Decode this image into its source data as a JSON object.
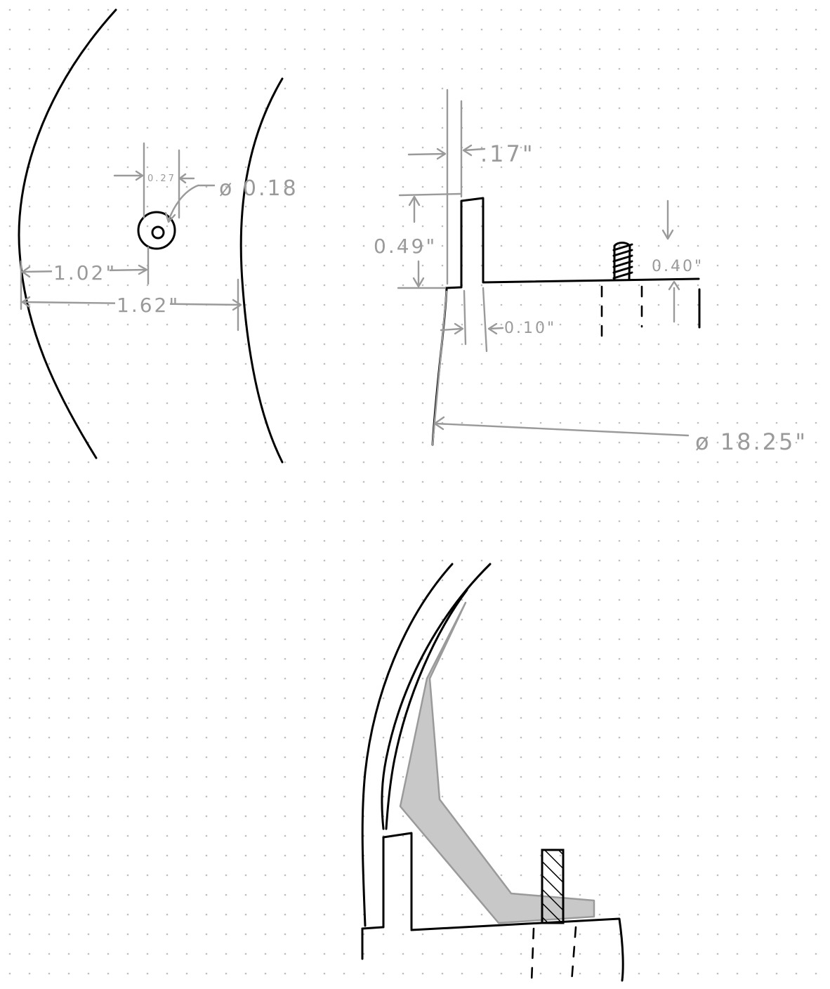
{
  "sketch_1_hole_plan": {
    "hole_offset_width": "0.27",
    "hole_diameter": "ø 0.18",
    "hole_distance": "1.02\"",
    "flange_width": "1.62\""
  },
  "sketch_2_section": {
    "thickness_top": ".17\"",
    "lip_height": "0.49\"",
    "stud_height": "0.40\"",
    "lip_thickness": "0.10\"",
    "overall_diameter": "ø 18.25\""
  },
  "sketch_3_bracket": {},
  "colors": {
    "ink": "#000000",
    "dimension": "#9a9a9a",
    "fill_part": "#c8c8c8",
    "grid_dot": "#bdbdbd"
  }
}
